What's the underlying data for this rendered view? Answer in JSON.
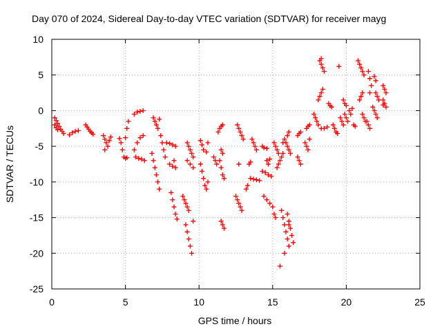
{
  "chart_data": {
    "type": "scatter",
    "title": "Day 070 of 2024, Sidereal Day-to-day VTEC variation (SDTVAR) for receiver mayg",
    "xlabel": "GPS time / hours",
    "ylabel": "SDTVAR / TECUs",
    "xlim": [
      0,
      25
    ],
    "ylim": [
      -25,
      10
    ],
    "xticks": [
      "0",
      "5",
      "10",
      "15",
      "20",
      "25"
    ],
    "yticks": [
      "10",
      "5",
      "0",
      "-5",
      "-10",
      "-15",
      "-20",
      "-25"
    ],
    "grid": true,
    "marker": "plus",
    "color": "#ff0000",
    "series": [
      {
        "name": "SDTVAR",
        "points": [
          [
            0.2,
            -1.0
          ],
          [
            0.3,
            -1.4
          ],
          [
            0.4,
            -1.8
          ],
          [
            0.5,
            -2.2
          ],
          [
            0.6,
            -2.6
          ],
          [
            0.7,
            -2.9
          ],
          [
            0.8,
            -3.2
          ],
          [
            0.2,
            -2.0
          ],
          [
            0.3,
            -2.4
          ],
          [
            0.4,
            -2.7
          ],
          [
            1.2,
            -3.4
          ],
          [
            1.4,
            -3.1
          ],
          [
            1.6,
            -2.9
          ],
          [
            1.8,
            -2.8
          ],
          [
            2.3,
            -2.0
          ],
          [
            2.4,
            -2.3
          ],
          [
            2.5,
            -2.6
          ],
          [
            2.6,
            -2.9
          ],
          [
            2.7,
            -3.1
          ],
          [
            2.8,
            -3.3
          ],
          [
            3.5,
            -3.5
          ],
          [
            3.6,
            -4.0
          ],
          [
            3.7,
            -4.5
          ],
          [
            3.8,
            -5.0
          ],
          [
            3.9,
            -4.2
          ],
          [
            4.0,
            -3.7
          ],
          [
            3.6,
            -5.5
          ],
          [
            4.6,
            -3.9
          ],
          [
            4.7,
            -4.5
          ],
          [
            4.8,
            -5.5
          ],
          [
            4.9,
            -6.5
          ],
          [
            5.0,
            -6.7
          ],
          [
            5.1,
            -6.6
          ],
          [
            5.0,
            -3.8
          ],
          [
            5.1,
            -2.5
          ],
          [
            5.2,
            -1.5
          ],
          [
            5.6,
            -0.5
          ],
          [
            5.8,
            -0.2
          ],
          [
            6.0,
            -0.1
          ],
          [
            6.2,
            0.0
          ],
          [
            5.7,
            -6.5
          ],
          [
            5.9,
            -6.7
          ],
          [
            6.1,
            -6.8
          ],
          [
            6.3,
            -7.0
          ],
          [
            5.6,
            -5.5
          ],
          [
            5.8,
            -4.5
          ],
          [
            6.0,
            -3.8
          ],
          [
            6.2,
            -3.5
          ],
          [
            6.9,
            -1.0
          ],
          [
            7.0,
            -1.5
          ],
          [
            7.1,
            -2.0
          ],
          [
            7.2,
            -2.5
          ],
          [
            7.3,
            -1.2
          ],
          [
            6.8,
            -6.0
          ],
          [
            6.9,
            -7.0
          ],
          [
            7.0,
            -8.0
          ],
          [
            7.1,
            -9.0
          ],
          [
            7.2,
            -10.0
          ],
          [
            7.3,
            -11.0
          ],
          [
            7.4,
            -3.5
          ],
          [
            7.5,
            -4.5
          ],
          [
            7.6,
            -5.5
          ],
          [
            7.7,
            -6.5
          ],
          [
            7.8,
            -4.5
          ],
          [
            8.0,
            -4.6
          ],
          [
            8.2,
            -4.8
          ],
          [
            8.4,
            -5.0
          ],
          [
            8.0,
            -7.5
          ],
          [
            8.2,
            -7.8
          ],
          [
            8.4,
            -8.0
          ],
          [
            8.3,
            -7.0
          ],
          [
            8.1,
            -11.5
          ],
          [
            8.2,
            -12.5
          ],
          [
            8.3,
            -13.5
          ],
          [
            8.4,
            -14.5
          ],
          [
            8.5,
            -15.2
          ],
          [
            8.9,
            -12.0
          ],
          [
            9.0,
            -12.5
          ],
          [
            9.1,
            -13.0
          ],
          [
            9.2,
            -13.5
          ],
          [
            9.3,
            -14.0
          ],
          [
            9.1,
            -16.0
          ],
          [
            9.2,
            -17.0
          ],
          [
            9.3,
            -18.0
          ],
          [
            9.4,
            -19.0
          ],
          [
            9.5,
            -20.0
          ],
          [
            9.6,
            -15.5
          ],
          [
            9.2,
            -4.5
          ],
          [
            9.3,
            -5.0
          ],
          [
            9.4,
            -5.5
          ],
          [
            9.5,
            -6.0
          ],
          [
            9.6,
            -6.5
          ],
          [
            9.2,
            -7.0
          ],
          [
            9.4,
            -7.5
          ],
          [
            9.6,
            -8.0
          ],
          [
            10.1,
            -4.2
          ],
          [
            10.2,
            -4.8
          ],
          [
            10.3,
            -5.5
          ],
          [
            10.5,
            -5.8
          ],
          [
            10.6,
            -4.5
          ],
          [
            10.1,
            -7.5
          ],
          [
            10.2,
            -8.5
          ],
          [
            10.3,
            -9.5
          ],
          [
            10.4,
            -10.5
          ],
          [
            10.5,
            -11.0
          ],
          [
            10.6,
            -10.0
          ],
          [
            11.0,
            -6.5
          ],
          [
            11.1,
            -7.0
          ],
          [
            11.2,
            -7.5
          ],
          [
            11.3,
            -3.0
          ],
          [
            11.4,
            -2.5
          ],
          [
            11.5,
            -2.2
          ],
          [
            11.6,
            -2.0
          ],
          [
            11.4,
            -7.0
          ],
          [
            11.5,
            -8.0
          ],
          [
            11.6,
            -9.0
          ],
          [
            11.7,
            -9.5
          ],
          [
            11.5,
            -5.5
          ],
          [
            11.6,
            -6.0
          ],
          [
            11.5,
            -15.5
          ],
          [
            11.6,
            -16.0
          ],
          [
            11.7,
            -16.5
          ],
          [
            12.6,
            -2.0
          ],
          [
            12.7,
            -2.5
          ],
          [
            12.8,
            -3.0
          ],
          [
            12.9,
            -3.5
          ],
          [
            13.0,
            -4.0
          ],
          [
            12.5,
            -12.0
          ],
          [
            12.6,
            -12.5
          ],
          [
            12.7,
            -13.0
          ],
          [
            12.8,
            -13.5
          ],
          [
            12.9,
            -14.0
          ],
          [
            12.7,
            -7.5
          ],
          [
            13.2,
            -11.0
          ],
          [
            13.3,
            -10.5
          ],
          [
            13.6,
            -4.0
          ],
          [
            13.7,
            -4.5
          ],
          [
            13.8,
            -5.0
          ],
          [
            13.9,
            -5.5
          ],
          [
            13.5,
            -9.5
          ],
          [
            13.7,
            -9.6
          ],
          [
            13.9,
            -9.7
          ],
          [
            14.1,
            -9.8
          ],
          [
            13.4,
            -7.5
          ],
          [
            13.5,
            -7.2
          ],
          [
            14.3,
            -5.0
          ],
          [
            14.4,
            -5.2
          ],
          [
            14.6,
            -5.3
          ],
          [
            14.3,
            -8.5
          ],
          [
            14.5,
            -8.7
          ],
          [
            14.7,
            -9.0
          ],
          [
            14.9,
            -9.2
          ],
          [
            14.4,
            -12.0
          ],
          [
            14.6,
            -12.5
          ],
          [
            14.8,
            -13.0
          ],
          [
            15.0,
            -13.5
          ],
          [
            15.1,
            -14.5
          ],
          [
            15.2,
            -15.0
          ],
          [
            14.6,
            -7.0
          ],
          [
            14.7,
            -7.5
          ],
          [
            14.8,
            -6.8
          ],
          [
            15.1,
            -4.5
          ],
          [
            15.2,
            -5.0
          ],
          [
            15.3,
            -5.5
          ],
          [
            15.4,
            -6.0
          ],
          [
            15.3,
            -8.0
          ],
          [
            15.4,
            -7.5
          ],
          [
            15.5,
            -7.0
          ],
          [
            15.6,
            -6.5
          ],
          [
            15.7,
            -6.0
          ],
          [
            15.6,
            -14.0
          ],
          [
            15.7,
            -15.0
          ],
          [
            15.8,
            -16.0
          ],
          [
            15.9,
            -17.0
          ],
          [
            16.0,
            -18.0
          ],
          [
            16.1,
            -19.0
          ],
          [
            15.8,
            -20.0
          ],
          [
            16.0,
            -14.5
          ],
          [
            16.1,
            -15.5
          ],
          [
            16.2,
            -16.5
          ],
          [
            16.3,
            -17.5
          ],
          [
            16.4,
            -18.5
          ],
          [
            16.1,
            -16.0
          ],
          [
            15.5,
            -21.8
          ],
          [
            15.7,
            -4.5
          ],
          [
            15.8,
            -4.0
          ],
          [
            15.9,
            -4.5
          ],
          [
            16.0,
            -5.0
          ],
          [
            16.1,
            -5.5
          ],
          [
            16.2,
            -6.0
          ],
          [
            16.0,
            -3.5
          ],
          [
            16.1,
            -3.0
          ],
          [
            16.7,
            -3.5
          ],
          [
            16.8,
            -3.2
          ],
          [
            16.9,
            -3.0
          ],
          [
            16.7,
            -6.5
          ],
          [
            16.8,
            -7.0
          ],
          [
            16.9,
            -7.5
          ],
          [
            17.2,
            -4.5
          ],
          [
            17.3,
            -5.0
          ],
          [
            17.4,
            -5.5
          ],
          [
            17.5,
            -4.0
          ],
          [
            17.3,
            -2.5
          ],
          [
            17.4,
            -2.2
          ],
          [
            17.5,
            -2.0
          ],
          [
            17.8,
            -0.5
          ],
          [
            17.9,
            -1.0
          ],
          [
            18.0,
            -1.5
          ],
          [
            18.1,
            -2.0
          ],
          [
            18.2,
            7.0
          ],
          [
            18.3,
            6.5
          ],
          [
            18.4,
            6.0
          ],
          [
            18.5,
            5.5
          ],
          [
            18.3,
            7.3
          ],
          [
            18.2,
            2.0
          ],
          [
            18.3,
            2.5
          ],
          [
            18.4,
            3.0
          ],
          [
            18.1,
            1.5
          ],
          [
            18.3,
            -2.5
          ],
          [
            18.5,
            -2.5
          ],
          [
            18.7,
            -2.3
          ],
          [
            18.8,
            1.0
          ],
          [
            18.9,
            0.7
          ],
          [
            19.0,
            0.5
          ],
          [
            19.1,
            -2.0
          ],
          [
            19.2,
            -2.5
          ],
          [
            19.3,
            -3.0
          ],
          [
            19.4,
            -3.2
          ],
          [
            19.5,
            6.2
          ],
          [
            19.6,
            -1.0
          ],
          [
            19.7,
            -1.5
          ],
          [
            19.8,
            -2.0
          ],
          [
            19.9,
            -0.5
          ],
          [
            20.0,
            -1.0
          ],
          [
            20.1,
            -1.5
          ],
          [
            19.8,
            1.5
          ],
          [
            19.9,
            1.0
          ],
          [
            20.0,
            0.7
          ],
          [
            20.2,
            0.0
          ],
          [
            20.3,
            -0.5
          ],
          [
            20.4,
            0.3
          ],
          [
            20.5,
            -2.0
          ],
          [
            20.6,
            -2.2
          ],
          [
            20.8,
            7.0
          ],
          [
            20.9,
            6.5
          ],
          [
            21.0,
            6.0
          ],
          [
            21.1,
            5.5
          ],
          [
            21.2,
            5.0
          ],
          [
            20.9,
            1.5
          ],
          [
            21.0,
            2.0
          ],
          [
            21.1,
            2.5
          ],
          [
            21.1,
            -0.5
          ],
          [
            21.2,
            -1.0
          ],
          [
            21.3,
            -1.5
          ],
          [
            21.5,
            5.5
          ],
          [
            21.6,
            4.5
          ],
          [
            21.7,
            3.5
          ],
          [
            21.6,
            2.5
          ],
          [
            21.4,
            -1.5
          ],
          [
            21.5,
            -2.0
          ],
          [
            21.6,
            -2.5
          ],
          [
            21.8,
            0.5
          ],
          [
            21.9,
            0.0
          ],
          [
            22.0,
            -0.5
          ],
          [
            22.1,
            -1.0
          ],
          [
            22.0,
            2.5
          ],
          [
            22.1,
            2.0
          ],
          [
            22.2,
            1.5
          ],
          [
            21.9,
            4.8
          ],
          [
            22.0,
            4.2
          ],
          [
            22.5,
            3.5
          ],
          [
            22.6,
            3.0
          ],
          [
            22.7,
            2.5
          ],
          [
            22.5,
            1.5
          ],
          [
            22.6,
            1.0
          ],
          [
            22.7,
            0.5
          ],
          [
            22.5,
            0.8
          ]
        ]
      }
    ]
  }
}
